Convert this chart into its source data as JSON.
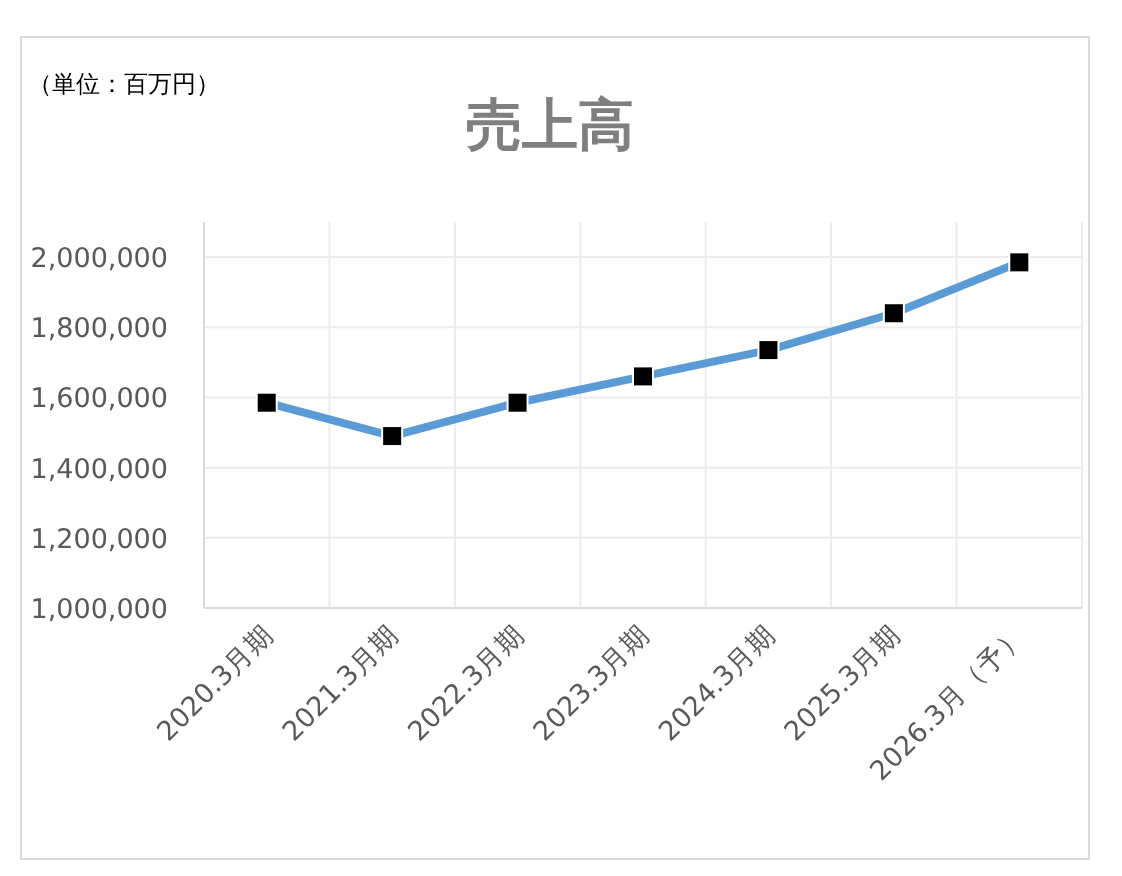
{
  "chart_data": {
    "type": "line",
    "title": "売上高",
    "annotations": [
      "（単位：百万円）"
    ],
    "categories": [
      "2020.3月期",
      "2021.3月期",
      "2022.3月期",
      "2023.3月期",
      "2024.3月期",
      "2025.3月期",
      "2026.3月（予）"
    ],
    "series": [
      {
        "color": "#5b9bd5",
        "values": [
          1585000,
          1490000,
          1585000,
          1660000,
          1735000,
          1840000,
          1985000
        ]
      }
    ],
    "ylim": [
      1000000,
      2100000
    ],
    "yticks": [
      {
        "value": 1000000,
        "label": "1,000,000"
      },
      {
        "value": 1200000,
        "label": "1,200,000"
      },
      {
        "value": 1400000,
        "label": "1,400,000"
      },
      {
        "value": 1600000,
        "label": "1,600,000"
      },
      {
        "value": 1800000,
        "label": "1,800,000"
      },
      {
        "value": 2000000,
        "label": "2,000,000"
      }
    ],
    "grid": true,
    "marker": "square",
    "line_style": "solid"
  }
}
